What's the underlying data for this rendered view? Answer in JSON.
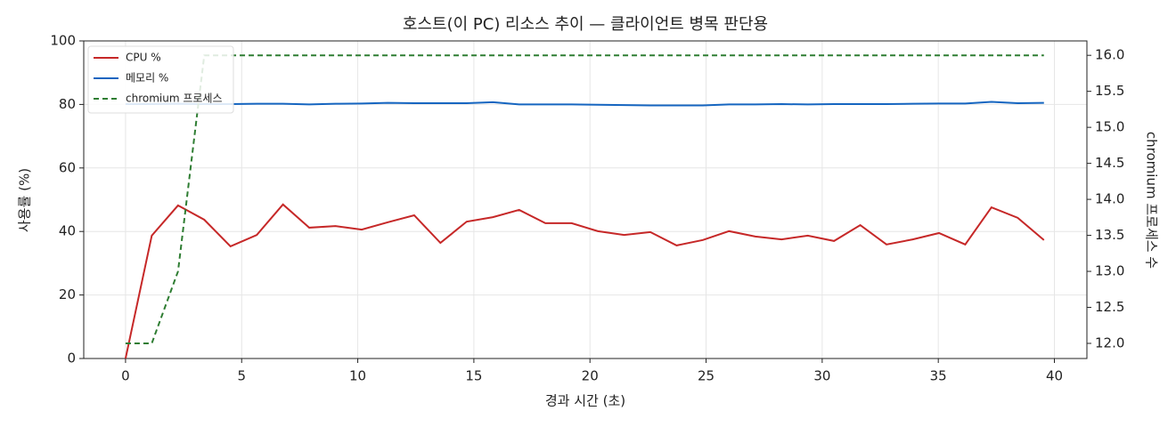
{
  "chart_data": {
    "type": "line",
    "title": "호스트(이 PC) 리소스 추이 — 클라이언트 병목 판단용",
    "x_label": "경과 시간 (초)",
    "y_label": "사용률 (%)",
    "y2_label": "chromium 프로세스 수",
    "x": [
      0,
      1.13,
      2.26,
      3.39,
      4.52,
      5.65,
      6.78,
      7.91,
      9.04,
      10.17,
      11.3,
      12.43,
      13.56,
      14.69,
      15.82,
      16.95,
      18.08,
      19.21,
      20.34,
      21.47,
      22.6,
      23.73,
      24.86,
      25.99,
      27.12,
      28.25,
      29.38,
      30.51,
      31.64,
      32.77,
      33.9,
      35.03,
      36.16,
      37.29,
      38.42,
      39.55
    ],
    "series": [
      {
        "name": "CPU %",
        "color": "#c62828",
        "dashed": false,
        "values": [
          0,
          38.7,
          48.2,
          43.7,
          35.3,
          38.9,
          48.5,
          41.2,
          41.7,
          40.6,
          42.9,
          45.1,
          36.4,
          43.1,
          44.5,
          46.8,
          42.6,
          42.6,
          40.1,
          38.9,
          39.8,
          35.6,
          37.3,
          40.1,
          38.4,
          37.5,
          38.7,
          37.0,
          42.0,
          35.9,
          37.5,
          39.5,
          35.9,
          47.6,
          44.3,
          37.3
        ]
      },
      {
        "name": "메모리 %",
        "color": "#1565c0",
        "dashed": false,
        "values": [
          80.1,
          80.1,
          80.2,
          80.1,
          80.1,
          80.2,
          80.2,
          80.0,
          80.2,
          80.3,
          80.5,
          80.4,
          80.4,
          80.4,
          80.7,
          80.0,
          80.0,
          80.0,
          79.9,
          79.8,
          79.7,
          79.7,
          79.7,
          80.0,
          80.0,
          80.1,
          80.0,
          80.1,
          80.1,
          80.1,
          80.2,
          80.3,
          80.3,
          80.8,
          80.4,
          80.5
        ]
      },
      {
        "name": "chromium 프로세스",
        "color": "#2e7d32",
        "dashed": true,
        "axis": "y2",
        "values": [
          12,
          12,
          13,
          16,
          16,
          16,
          16,
          16,
          16,
          16,
          16,
          16,
          16,
          16,
          16,
          16,
          16,
          16,
          16,
          16,
          16,
          16,
          16,
          16,
          16,
          16,
          16,
          16,
          16,
          16,
          16,
          16,
          16,
          16,
          16,
          16
        ]
      }
    ],
    "xlim": [
      -1.8,
      41.4
    ],
    "xticks": [
      0,
      5,
      10,
      15,
      20,
      25,
      30,
      35,
      40
    ],
    "ylim": [
      0,
      100
    ],
    "yticks": [
      0,
      20,
      40,
      60,
      80,
      100
    ],
    "y2lim": [
      11.79,
      16.2
    ],
    "y2ticks": [
      {
        "value": 12,
        "label": "12.0"
      },
      {
        "value": 12.5,
        "label": "12.5"
      },
      {
        "value": 13,
        "label": "13.0"
      },
      {
        "value": 13.5,
        "label": "13.5"
      },
      {
        "value": 14,
        "label": "14.0"
      },
      {
        "value": 14.5,
        "label": "14.5"
      },
      {
        "value": 15,
        "label": "15.0"
      },
      {
        "value": 15.5,
        "label": "15.5"
      },
      {
        "value": 16,
        "label": "16.0"
      }
    ],
    "grid": true,
    "legend": "upper-left"
  }
}
